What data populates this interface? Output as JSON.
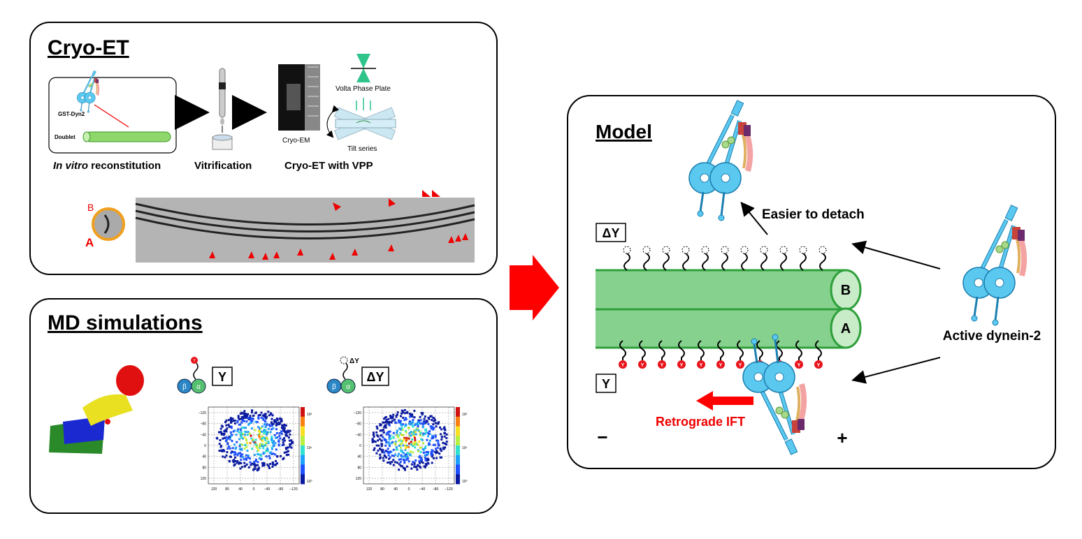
{
  "cryo_et": {
    "title": "Cryo-ET",
    "inset": {
      "protein": "GST-Dyn2",
      "track": "Doublet"
    },
    "steps": [
      {
        "label_italic": "In vitro",
        "label": " reconstitution"
      },
      {
        "label": "Vitrification"
      },
      {
        "label": "Cryo-ET with VPP"
      }
    ],
    "microscope": "Cryo-EM",
    "phase_plate": "Volta Phase Plate",
    "tilt": "Tilt series",
    "tubules": [
      "B",
      "A"
    ]
  },
  "md": {
    "title": "MD simulations",
    "subunits": [
      "β",
      "α"
    ],
    "tyrosine": "Y",
    "conditions": [
      {
        "label": "Y",
        "tail": "Y"
      },
      {
        "label": "ΔY",
        "tail": "ΔY"
      }
    ],
    "xticks": [
      "120",
      "80",
      "40",
      "0",
      "−40",
      "−80",
      "−120"
    ],
    "yticks": [
      "−120",
      "−80",
      "−40",
      "0",
      "40",
      "80",
      "120"
    ],
    "colorbar": [
      "10²",
      "10¹",
      "10⁰"
    ]
  },
  "model": {
    "title": "Model",
    "detach": "Easier to detach",
    "states": [
      "ΔY",
      "Y"
    ],
    "tubules": [
      "B",
      "A"
    ],
    "tyrosine": "Y",
    "active": "Active dynein-2",
    "transport": "Retrograde IFT",
    "minus": "−",
    "plus": "+"
  }
}
